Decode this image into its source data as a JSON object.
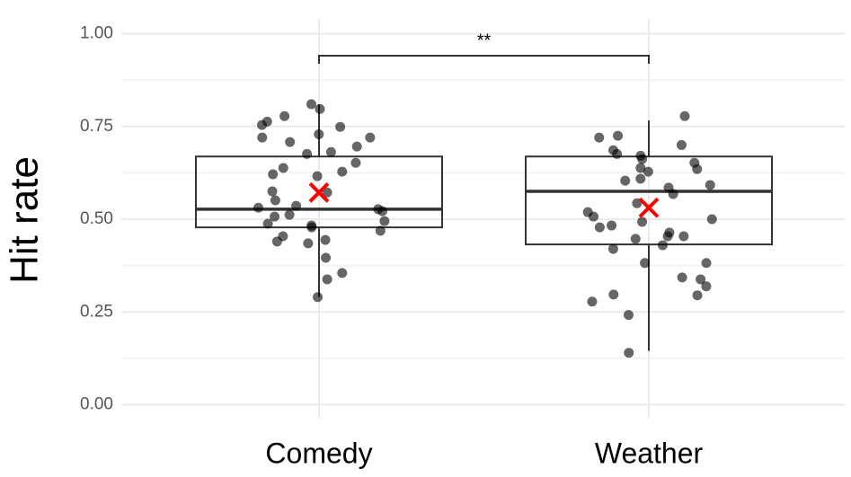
{
  "chart_data": {
    "type": "boxplot",
    "ylabel": "Hit rate",
    "annotation": "**",
    "categories": [
      "Comedy",
      "Weather"
    ],
    "ylim": [
      -0.035,
      1.04
    ],
    "yticks": [
      {
        "value": 0,
        "label": "0.00"
      },
      0.25,
      {
        "value": 0.5,
        "label": "0.50"
      },
      0.75,
      {
        "value": 1,
        "label": "1.00"
      }
    ],
    "grid": true,
    "box_color": "#333333",
    "point_color": "#000000",
    "mean_color": "#ff0000",
    "boxes": [
      {
        "min": 0.29,
        "q1": 0.478,
        "median": 0.527,
        "q3": 0.669,
        "max": 0.809,
        "mean": 0.572
      },
      {
        "min": 0.145,
        "q1": 0.432,
        "median": 0.575,
        "q3": 0.669,
        "max": 0.766,
        "mean": 0.531
      }
    ],
    "points": [
      [
        0.29,
        0.338,
        0.763,
        0.778,
        0.81,
        0.797,
        0.72,
        0.72,
        0.681,
        0.676,
        0.708,
        0.696,
        0.749,
        0.754,
        0.729,
        0.638,
        0.628,
        0.621,
        0.572,
        0.616,
        0.551,
        0.531,
        0.527,
        0.522,
        0.488,
        0.483,
        0.469,
        0.44,
        0.435,
        0.396,
        0.355,
        0.512,
        0.507,
        0.495,
        0.478,
        0.454,
        0.444,
        0.536,
        0.575,
        0.652
      ],
      [
        0.14,
        0.242,
        0.278,
        0.319,
        0.297,
        0.338,
        0.382,
        0.42,
        0.43,
        0.447,
        0.454,
        0.464,
        0.478,
        0.483,
        0.493,
        0.507,
        0.519,
        0.543,
        0.568,
        0.585,
        0.592,
        0.604,
        0.609,
        0.628,
        0.638,
        0.652,
        0.662,
        0.671,
        0.676,
        0.686,
        0.7,
        0.72,
        0.725,
        0.778,
        0.635,
        0.5,
        0.382,
        0.295,
        0.343,
        0.454
      ]
    ]
  }
}
